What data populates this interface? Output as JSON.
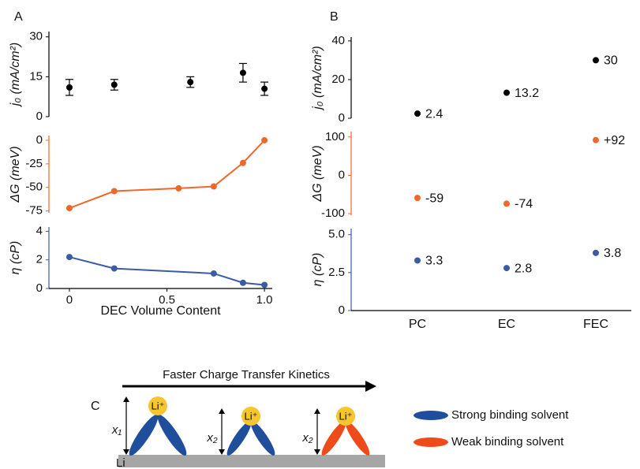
{
  "panel_labels": [
    "A",
    "B",
    "C"
  ],
  "chart_data": [
    {
      "type": "scatter",
      "ylabel": "j₀ (mA/cm²)",
      "color": "#000000",
      "x": [
        0,
        0.23,
        0.62,
        0.89,
        1.0
      ],
      "values": [
        11,
        12,
        13,
        16.5,
        10.5
      ],
      "errors": [
        3,
        2,
        2,
        3.5,
        2.5
      ],
      "xlim": [
        -0.105,
        1.04
      ],
      "ylim": [
        0,
        32
      ],
      "yticks": [
        0,
        15,
        30
      ]
    },
    {
      "type": "line",
      "ylabel": "ΔG (meV)",
      "color": "#f0672a",
      "x": [
        0,
        0.23,
        0.56,
        0.74,
        0.89,
        1.0
      ],
      "values": [
        -72,
        -54,
        -51,
        -49,
        -24,
        0
      ],
      "xlim": [
        -0.105,
        1.04
      ],
      "ylim": [
        -77,
        5
      ],
      "yticks": [
        0,
        -25,
        -50,
        -75
      ]
    },
    {
      "type": "line",
      "ylabel": "η (cP)",
      "color": "#3b5ba5",
      "x": [
        0,
        0.23,
        0.74,
        0.89,
        1.0
      ],
      "values": [
        2.2,
        1.4,
        1.05,
        0.4,
        0.25
      ],
      "xlim": [
        -0.105,
        1.04
      ],
      "xticks": [
        0,
        0.5,
        {
          "value": 1,
          "label": "1.0"
        }
      ],
      "xlabel": "DEC Volume Content",
      "ylim": [
        0,
        4.3
      ],
      "yticks": [
        0,
        2,
        4
      ]
    },
    {
      "type": "scatter",
      "ylabel": "j₀ (mA/cm²)",
      "color": "#000000",
      "values": [
        2.4,
        13.2,
        30
      ],
      "show_values": true,
      "ylim": [
        0,
        42
      ],
      "yticks": [
        0,
        20,
        40
      ]
    },
    {
      "type": "scatter",
      "ylabel": "ΔG (meV)",
      "color": "#f0672a",
      "values": [
        -59,
        -74,
        92
      ],
      "value_labels": [
        "-59",
        "-74",
        "+92"
      ],
      "ylim": [
        -104,
        114
      ],
      "yticks": [
        -100,
        0,
        100
      ]
    },
    {
      "type": "scatter",
      "ylabel": "η (cP)",
      "color": "#3b5ba5",
      "categories": [
        "PC",
        "EC",
        "FEC"
      ],
      "values": [
        3.3,
        2.8,
        3.8
      ],
      "show_values": true,
      "ylim": [
        0,
        5.4
      ],
      "yticks": [
        0,
        2.5,
        {
          "value": 5,
          "label": "5.0"
        }
      ]
    }
  ],
  "diagram": {
    "arrow_label": "Faster Charge Transfer Kinetics",
    "ion": "Li⁺",
    "heights": [
      "x₁",
      "x₂",
      "x₂"
    ],
    "electrode": "Li",
    "legend": [
      "Strong binding solvent",
      "Weak binding solvent"
    ]
  }
}
